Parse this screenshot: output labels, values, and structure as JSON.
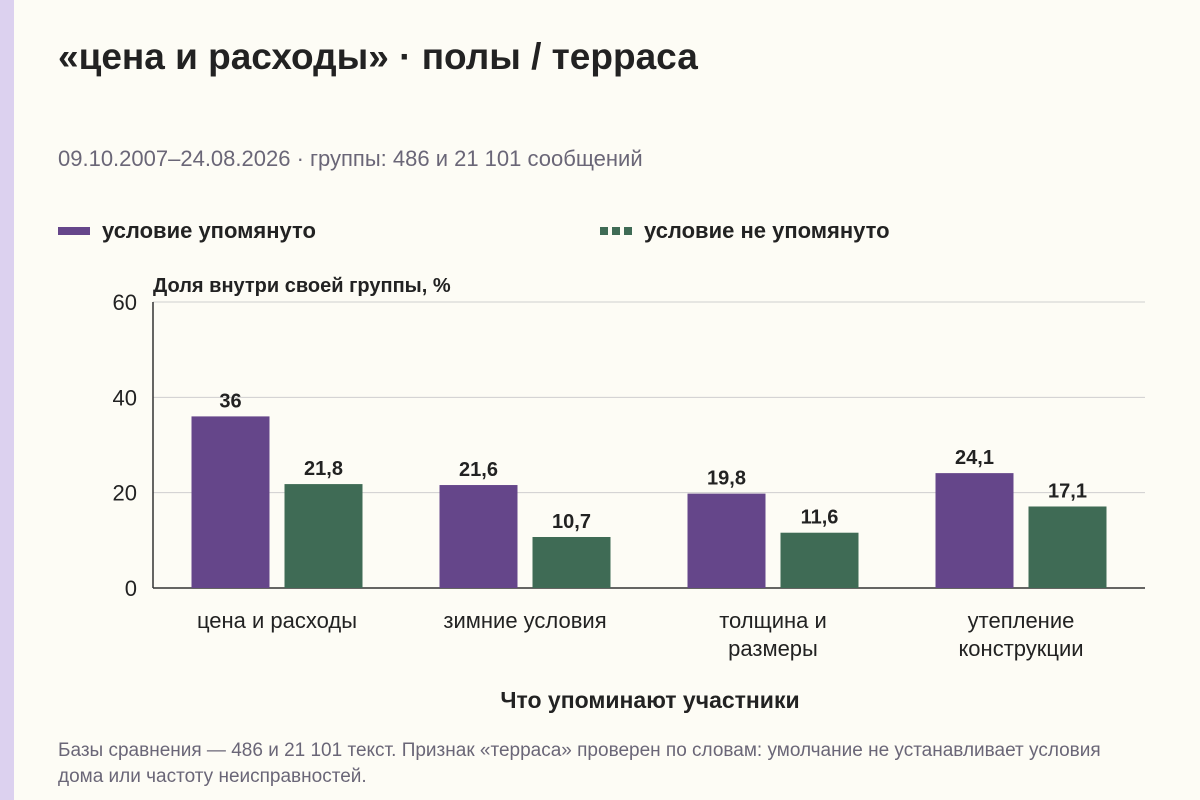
{
  "title": "«цена и расходы» · полы / терраса",
  "subtitle": "09.10.2007–24.08.2026 · группы: 486 и 21 101 сообщений",
  "legend": [
    {
      "label": "условие упомянуто",
      "color": "#65468a",
      "style": "solid"
    },
    {
      "label": "условие не упомянуто",
      "color": "#3f6b55",
      "style": "dashed"
    }
  ],
  "footnote": "Базы сравнения — 486 и 21 101 текст. Признак «терраса» проверен по словам: умолчание не устанавливает условия дома или частоту неисправностей.",
  "chart_data": {
    "type": "bar",
    "title": "«цена и расходы» · полы / терраса",
    "ylabel": "Доля внутри своей группы, %",
    "xlabel": "Что упоминают участники",
    "ylim": [
      0,
      60
    ],
    "yticks": [
      0,
      20,
      40,
      60
    ],
    "grid": true,
    "categories": [
      [
        "цена и расходы"
      ],
      [
        "зимние условия"
      ],
      [
        "толщина и",
        "размеры"
      ],
      [
        "утепление",
        "конструкции"
      ]
    ],
    "series": [
      {
        "name": "условие упомянуто",
        "color": "#65468a",
        "values": [
          36,
          21.6,
          19.8,
          24.1
        ],
        "labels": [
          "36",
          "21,6",
          "19,8",
          "24,1"
        ]
      },
      {
        "name": "условие не упомянуто",
        "color": "#3f6b55",
        "values": [
          21.8,
          10.7,
          11.6,
          17.1
        ],
        "labels": [
          "21,8",
          "10,7",
          "11,6",
          "17,1"
        ]
      }
    ]
  }
}
